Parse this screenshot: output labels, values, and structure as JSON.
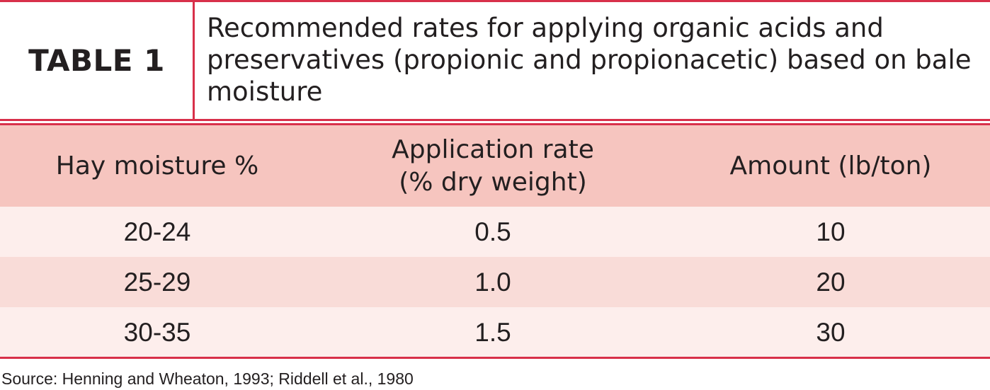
{
  "table": {
    "label": "TABLE 1",
    "title": "Recommended rates for applying organic acids and preservatives (propionic and propionacetic) based on bale moisture",
    "columns": [
      "Hay moisture %",
      "Application rate\n(% dry weight)",
      "Amount (lb/ton)"
    ],
    "column_lines": {
      "hay_moisture": "Hay moisture %",
      "application_rate_line1": "Application rate",
      "application_rate_line2": "(% dry weight)",
      "amount": "Amount (lb/ton)"
    },
    "rows": [
      [
        "20-24",
        "0.5",
        "10"
      ],
      [
        "25-29",
        "1.0",
        "20"
      ],
      [
        "30-35",
        "1.5",
        "30"
      ]
    ]
  },
  "source": "Source: Henning and Wheaton, 1993; Riddell et al., 1980",
  "colors": {
    "accent_rule": "#d8304a",
    "header_fill": "#f6c5bf",
    "row_light": "#fdeeec",
    "row_dark": "#f9dcd8"
  }
}
